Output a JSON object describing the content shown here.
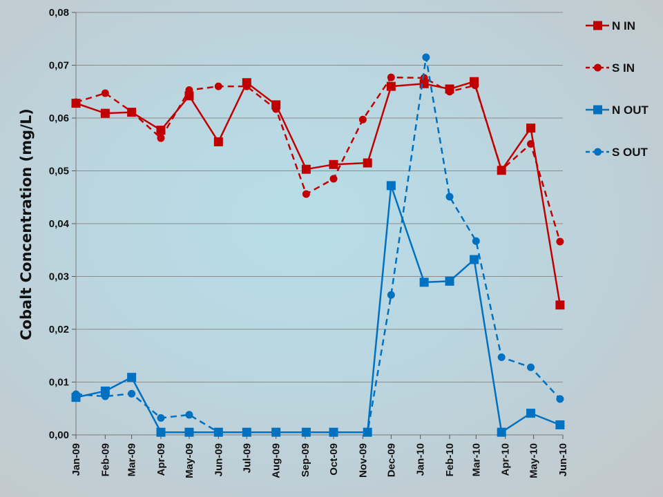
{
  "chart_data": {
    "type": "line",
    "title": "",
    "xlabel": "",
    "ylabel": "Cobalt Concentration (mg/L)",
    "ylim": [
      0,
      0.08
    ],
    "yticks": [
      0,
      0.01,
      0.02,
      0.03,
      0.04,
      0.05,
      0.06,
      0.07,
      0.08
    ],
    "ytick_labels": [
      "0,00",
      "0,01",
      "0,02",
      "0,03",
      "0,04",
      "0,05",
      "0,06",
      "0,07",
      "0,08"
    ],
    "x_axis_type": "date",
    "xlim": [
      "2009-01-01",
      "2010-06-01"
    ],
    "xticks": [
      "2009-01-01",
      "2009-02-01",
      "2009-03-01",
      "2009-04-01",
      "2009-05-01",
      "2009-06-01",
      "2009-07-01",
      "2009-08-01",
      "2009-09-01",
      "2009-10-01",
      "2009-11-01",
      "2009-12-01",
      "2010-01-01",
      "2010-02-01",
      "2010-03-01",
      "2010-04-01",
      "2010-05-01",
      "2010-06-01"
    ],
    "xtick_labels": [
      "Jan-09",
      "Feb-09",
      "Mar-09",
      "Apr-09",
      "May-09",
      "Jun-09",
      "Jul-09",
      "Aug-09",
      "Sep-09",
      "Oct-09",
      "Nov-09",
      "Dec-09",
      "Jan-10",
      "Feb-10",
      "Mar-10",
      "Apr-10",
      "May-10",
      "Jun-10"
    ],
    "grid": "horizontal",
    "legend_position": "right",
    "series": [
      {
        "name": "N IN",
        "color": "#c00000",
        "marker": "square",
        "line": "solid",
        "points": [
          {
            "x": "2009-01-01",
            "y": 0.0628
          },
          {
            "x": "2009-02-01",
            "y": 0.0609
          },
          {
            "x": "2009-03-01",
            "y": 0.0611
          },
          {
            "x": "2009-04-01",
            "y": 0.0577
          },
          {
            "x": "2009-05-01",
            "y": 0.0642
          },
          {
            "x": "2009-06-01",
            "y": 0.0555
          },
          {
            "x": "2009-07-01",
            "y": 0.0667
          },
          {
            "x": "2009-08-01",
            "y": 0.0625
          },
          {
            "x": "2009-09-02",
            "y": 0.0503
          },
          {
            "x": "2009-10-01",
            "y": 0.0512
          },
          {
            "x": "2009-11-06",
            "y": 0.0515
          },
          {
            "x": "2009-12-01",
            "y": 0.066
          },
          {
            "x": "2010-01-05",
            "y": 0.0665
          },
          {
            "x": "2010-02-01",
            "y": 0.0655
          },
          {
            "x": "2010-02-27",
            "y": 0.0669
          },
          {
            "x": "2010-03-28",
            "y": 0.0501
          },
          {
            "x": "2010-04-28",
            "y": 0.0581
          },
          {
            "x": "2010-05-29",
            "y": 0.0246
          }
        ]
      },
      {
        "name": "S IN",
        "color": "#c00000",
        "marker": "circle",
        "line": "dashed",
        "points": [
          {
            "x": "2009-01-01",
            "y": 0.063
          },
          {
            "x": "2009-02-01",
            "y": 0.0647
          },
          {
            "x": "2009-03-01",
            "y": 0.0612
          },
          {
            "x": "2009-04-01",
            "y": 0.0562
          },
          {
            "x": "2009-05-01",
            "y": 0.0653
          },
          {
            "x": "2009-06-01",
            "y": 0.066
          },
          {
            "x": "2009-07-01",
            "y": 0.066
          },
          {
            "x": "2009-08-01",
            "y": 0.0617
          },
          {
            "x": "2009-09-02",
            "y": 0.0456
          },
          {
            "x": "2009-10-01",
            "y": 0.0485
          },
          {
            "x": "2009-11-01",
            "y": 0.0597
          },
          {
            "x": "2009-12-01",
            "y": 0.0677
          },
          {
            "x": "2010-01-05",
            "y": 0.0676
          },
          {
            "x": "2010-02-01",
            "y": 0.065
          },
          {
            "x": "2010-02-28",
            "y": 0.0662
          },
          {
            "x": "2010-03-28",
            "y": 0.0502
          },
          {
            "x": "2010-04-28",
            "y": 0.0551
          },
          {
            "x": "2010-05-29",
            "y": 0.0366
          }
        ]
      },
      {
        "name": "N OUT",
        "color": "#0070c0",
        "marker": "square",
        "line": "solid",
        "points": [
          {
            "x": "2009-01-01",
            "y": 0.0071
          },
          {
            "x": "2009-02-01",
            "y": 0.0083
          },
          {
            "x": "2009-03-01",
            "y": 0.0109
          },
          {
            "x": "2009-04-01",
            "y": 0.0005
          },
          {
            "x": "2009-05-01",
            "y": 0.0005
          },
          {
            "x": "2009-06-01",
            "y": 0.0005
          },
          {
            "x": "2009-07-01",
            "y": 0.0005
          },
          {
            "x": "2009-08-01",
            "y": 0.0005
          },
          {
            "x": "2009-09-02",
            "y": 0.0005
          },
          {
            "x": "2009-10-01",
            "y": 0.0005
          },
          {
            "x": "2009-11-06",
            "y": 0.0005
          },
          {
            "x": "2009-12-01",
            "y": 0.0472
          },
          {
            "x": "2010-01-05",
            "y": 0.0289
          },
          {
            "x": "2010-02-01",
            "y": 0.0291
          },
          {
            "x": "2010-02-27",
            "y": 0.0332
          },
          {
            "x": "2010-03-28",
            "y": 0.0005
          },
          {
            "x": "2010-04-28",
            "y": 0.0041
          },
          {
            "x": "2010-05-29",
            "y": 0.0019
          }
        ]
      },
      {
        "name": "S OUT",
        "color": "#0070c0",
        "marker": "circle",
        "line": "dashed",
        "points": [
          {
            "x": "2009-01-01",
            "y": 0.0077
          },
          {
            "x": "2009-02-01",
            "y": 0.0073
          },
          {
            "x": "2009-03-01",
            "y": 0.0078
          },
          {
            "x": "2009-04-01",
            "y": 0.0032
          },
          {
            "x": "2009-05-01",
            "y": 0.0038
          },
          {
            "x": "2009-06-01",
            "y": 0.0005
          },
          {
            "x": "2009-07-01",
            "y": 0.0005
          },
          {
            "x": "2009-08-01",
            "y": 0.0005
          },
          {
            "x": "2009-09-02",
            "y": 0.0005
          },
          {
            "x": "2009-10-01",
            "y": 0.0005
          },
          {
            "x": "2009-11-06",
            "y": 0.0005
          },
          {
            "x": "2009-12-01",
            "y": 0.0265
          },
          {
            "x": "2010-01-07",
            "y": 0.0715
          },
          {
            "x": "2010-02-01",
            "y": 0.0451
          },
          {
            "x": "2010-03-01",
            "y": 0.0367
          },
          {
            "x": "2010-03-28",
            "y": 0.0147
          },
          {
            "x": "2010-04-28",
            "y": 0.0128
          },
          {
            "x": "2010-05-29",
            "y": 0.0068
          }
        ]
      }
    ]
  }
}
